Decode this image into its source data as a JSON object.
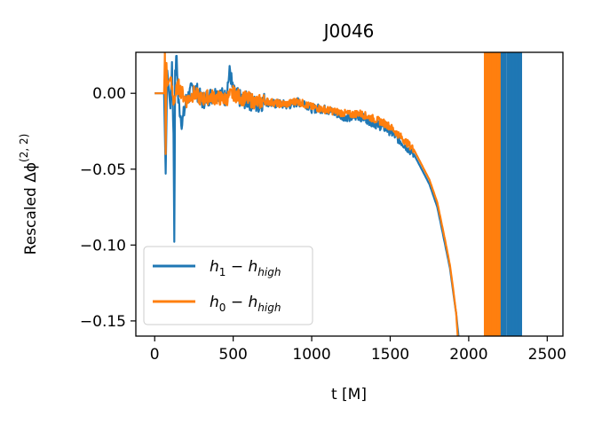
{
  "chart_data": {
    "type": "line",
    "title": "J0046",
    "xlabel": "t [M]",
    "ylabel": "Rescaled Δϕ",
    "ylabel_superscript": "(2, 2)",
    "xlim": [
      -120,
      2600
    ],
    "ylim": [
      -0.16,
      0.027
    ],
    "xticks": [
      0,
      500,
      1000,
      1500,
      2000,
      2500
    ],
    "xtick_labels": [
      "0",
      "500",
      "1000",
      "1500",
      "2000",
      "2500"
    ],
    "yticks": [
      0.0,
      -0.05,
      -0.1,
      -0.15
    ],
    "ytick_labels": [
      "0.00",
      "−0.05",
      "−0.10",
      "−0.15"
    ],
    "grid": false,
    "legend_position": "lower-left",
    "series": [
      {
        "name": "h₁ − h_high",
        "label_base": "h",
        "label_sub": "1",
        "label_tail": "h",
        "label_tail_sub": "high",
        "color": "#1f77b4",
        "x": [
          0,
          60,
          70,
          80,
          100,
          110,
          120,
          125,
          130,
          140,
          150,
          175,
          200,
          250,
          300,
          350,
          400,
          450,
          480,
          500,
          550,
          600,
          650,
          700,
          750,
          800,
          850,
          900,
          950,
          1000,
          1050,
          1100,
          1150,
          1200,
          1250,
          1300,
          1350,
          1400,
          1450,
          1500,
          1550,
          1600,
          1650,
          1700,
          1750,
          1800,
          1850,
          1880,
          1900,
          1920,
          1935
        ],
        "y": [
          0.0,
          0.0,
          -0.053,
          0.015,
          -0.01,
          0.02,
          -0.03,
          -0.096,
          0.01,
          0.025,
          -0.005,
          -0.02,
          -0.005,
          0.005,
          -0.005,
          -0.002,
          0.0,
          -0.003,
          0.015,
          0.0,
          -0.004,
          -0.005,
          -0.008,
          -0.005,
          -0.007,
          -0.007,
          -0.008,
          -0.006,
          -0.006,
          -0.01,
          -0.01,
          -0.011,
          -0.013,
          -0.015,
          -0.016,
          -0.015,
          -0.017,
          -0.02,
          -0.022,
          -0.025,
          -0.03,
          -0.035,
          -0.04,
          -0.05,
          -0.06,
          -0.075,
          -0.1,
          -0.115,
          -0.13,
          -0.145,
          -0.16
        ],
        "late_spikes_x": [
          2110,
          2120,
          2135,
          2150,
          2160,
          2170,
          2180,
          2200,
          2215,
          2230,
          2250,
          2260,
          2270,
          2285,
          2300,
          2310,
          2320,
          2330
        ]
      },
      {
        "name": "h₀ − h_high",
        "label_base": "h",
        "label_sub": "0",
        "label_tail": "h",
        "label_tail_sub": "high",
        "color": "#ff7f0e",
        "x": [
          0,
          60,
          65,
          70,
          75,
          80,
          100,
          120,
          150,
          200,
          250,
          300,
          350,
          400,
          450,
          500,
          550,
          600,
          650,
          700,
          750,
          800,
          850,
          900,
          950,
          1000,
          1050,
          1100,
          1150,
          1200,
          1250,
          1300,
          1350,
          1400,
          1450,
          1500,
          1550,
          1600,
          1650,
          1700,
          1750,
          1800,
          1850,
          1880,
          1900,
          1920,
          1930
        ],
        "y": [
          0.0,
          0.0,
          0.027,
          -0.04,
          0.02,
          0.005,
          0.01,
          -0.005,
          0.005,
          -0.005,
          0.0,
          -0.004,
          -0.002,
          -0.003,
          -0.004,
          0.0,
          -0.003,
          -0.004,
          -0.006,
          -0.005,
          -0.006,
          -0.007,
          -0.007,
          -0.005,
          -0.007,
          -0.009,
          -0.01,
          -0.011,
          -0.012,
          -0.013,
          -0.014,
          -0.013,
          -0.015,
          -0.017,
          -0.019,
          -0.022,
          -0.027,
          -0.032,
          -0.037,
          -0.047,
          -0.057,
          -0.072,
          -0.097,
          -0.113,
          -0.128,
          -0.145,
          -0.16
        ],
        "late_spikes_x": [
          2105,
          2115,
          2130,
          2140,
          2155,
          2165,
          2175,
          2185,
          2195
        ]
      }
    ]
  }
}
